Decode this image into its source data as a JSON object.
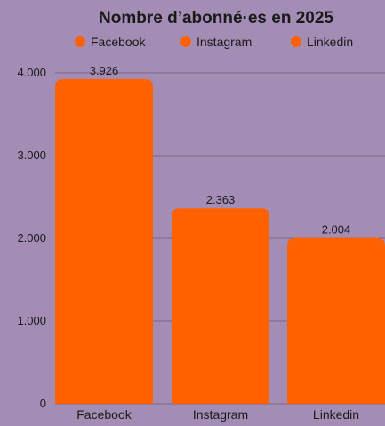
{
  "chart_data": {
    "type": "bar",
    "title": "Nombre d’abonné·es en 2025",
    "categories": [
      "Facebook",
      "Instagram",
      "Linkedin"
    ],
    "values": [
      3926,
      2363,
      2004
    ],
    "value_labels": [
      "3.926",
      "2.363",
      "2.004"
    ],
    "legend": {
      "position": "top",
      "entries": [
        "Facebook",
        "Instagram",
        "Linkedin"
      ]
    },
    "y_ticks": [
      0,
      1000,
      2000,
      3000,
      4000
    ],
    "y_tick_labels": [
      "0",
      "1.000",
      "2.000",
      "3.000",
      "4.000"
    ],
    "ylim": [
      0,
      4000
    ],
    "grid": true,
    "colors": {
      "background": "#a48db5",
      "bar": "#ff6100",
      "gridline": "#7a6888",
      "text": "#1a1a1a"
    }
  }
}
